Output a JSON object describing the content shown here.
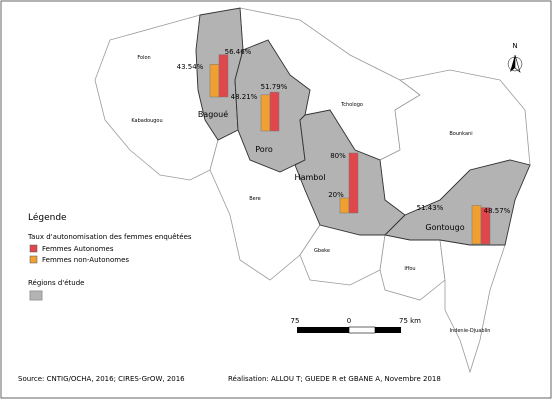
{
  "legend": {
    "title": "Légende",
    "subtitle": "Taux d'autonomisation des femmes enquêtées",
    "items": [
      {
        "label": "Femmes Autonomes",
        "color": "#e0474c"
      },
      {
        "label": "Femmes non-Autonomes",
        "color": "#f0a030"
      }
    ],
    "regions_title": "Régions d'étude",
    "regions_color": "#9a9a9a"
  },
  "regions": [
    {
      "name": "Bagoué",
      "autonomes": 56.46,
      "autonomes_label": "56.46%",
      "non_autonomes": 43.54,
      "non_autonomes_label": "43.54%"
    },
    {
      "name": "Poro",
      "autonomes": 51.79,
      "autonomes_label": "51.79%",
      "non_autonomes": 48.21,
      "non_autonomes_label": "48.21%"
    },
    {
      "name": "Hambol",
      "autonomes": 80,
      "autonomes_label": "80%",
      "non_autonomes": 20,
      "non_autonomes_label": "20%"
    },
    {
      "name": "Gontougo",
      "autonomes": 48.57,
      "autonomes_label": "48.57%",
      "non_autonomes": 51.43,
      "non_autonomes_label": "51.43%"
    }
  ],
  "other_regions": [
    "Folon",
    "Kabadougou",
    "Tchologo",
    "Bounkani",
    "Bere",
    "Gbeke",
    "Iffou",
    "Indenie-Djuablin"
  ],
  "scale": {
    "labels": [
      "75",
      "0",
      "75 km"
    ]
  },
  "north": "N",
  "source": "Source: CNTIG/OCHA, 2016; CIRES-GrOW, 2016",
  "credit": "Réalisation: ALLOU T; GUEDE R et GBANE A, Novembre 2018"
}
